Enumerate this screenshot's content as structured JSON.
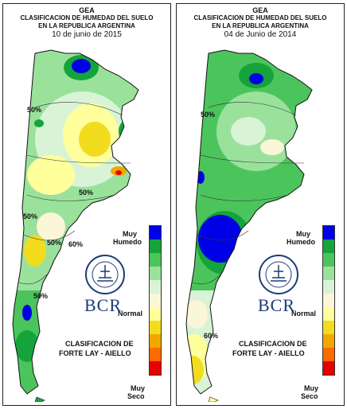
{
  "panels": [
    {
      "org": "GEA",
      "title_line1": "CLASIFICACION DE HUMEDAD DEL SUELO",
      "title_line2": "EN LA REPUBLICA ARGENTINA",
      "date": "10 de junio de 2015",
      "legend_top": [
        "Muy",
        "Humedo"
      ],
      "legend_mid": "Normal",
      "legend_bottom": [
        "Muy",
        "Seco"
      ],
      "classification": [
        "CLASIFICACION DE",
        "FORTE LAY - AIELLO"
      ],
      "logo": "BCR",
      "contour_labels": [
        "50%",
        "50%",
        "50%",
        "50%",
        "60%",
        "50%"
      ]
    },
    {
      "org": "GEA",
      "title_line1": "CLASIFICACION DE HUMEDAD DEL SUELO",
      "title_line2": "EN LA REPUBLICA ARGENTINA",
      "date": "04 de Junio de 2014",
      "legend_top": [
        "Muy",
        "Humedo"
      ],
      "legend_mid": "Normal",
      "legend_bottom": [
        "Muy",
        "Seco"
      ],
      "classification": [
        "CLASIFICACION DE",
        "FORTE LAY - AIELLO"
      ],
      "logo": "BCR",
      "contour_labels": [
        "50%",
        "60%"
      ]
    }
  ],
  "scale_colors": [
    "#0000e6",
    "#15a43c",
    "#4cc45c",
    "#9ae29c",
    "#d9f3d6",
    "#fbf6d8",
    "#ffff9c",
    "#f2dc1e",
    "#f0a800",
    "#ff6a00",
    "#e60000"
  ]
}
